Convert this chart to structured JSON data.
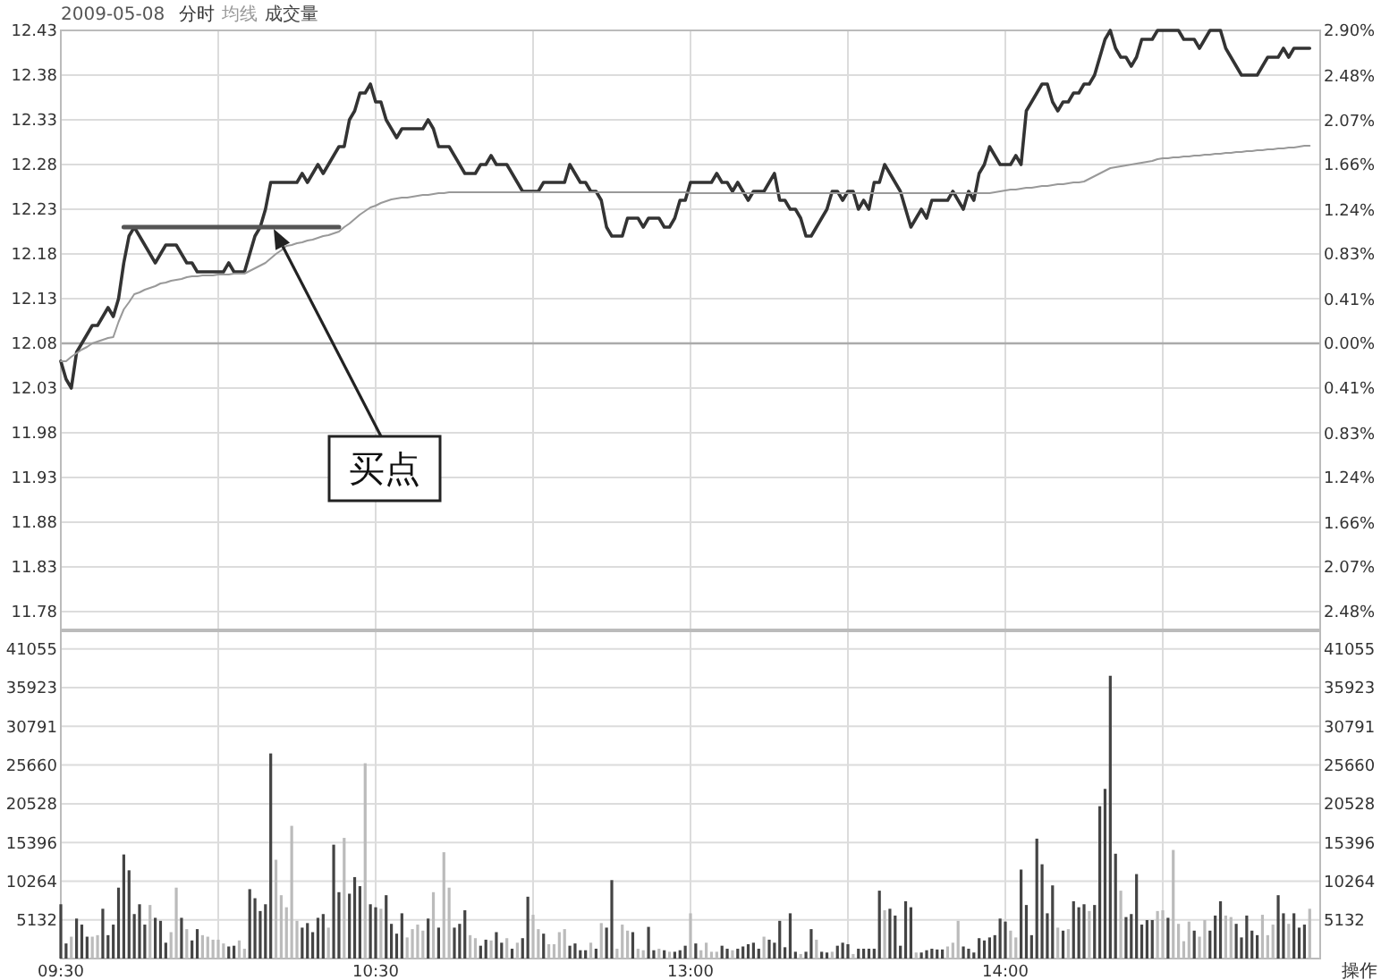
{
  "chart_data": [
    {
      "type": "line",
      "title": "2009-05-08",
      "legend": "top left",
      "grid": true,
      "tick_labels": "y",
      "categories": [
        null,
        null,
        null,
        null,
        null,
        null,
        null,
        null,
        null,
        null,
        null,
        null,
        null,
        null,
        null,
        null,
        null,
        null,
        null,
        null,
        null,
        null,
        null,
        null,
        null,
        null,
        null,
        null,
        null,
        null,
        null,
        null,
        null,
        null,
        null,
        null,
        null,
        null,
        null,
        null,
        null,
        null,
        null,
        null,
        null,
        null,
        null,
        null,
        null,
        null,
        null,
        null,
        null,
        null,
        null,
        null,
        null,
        null,
        null,
        null,
        null,
        null,
        null,
        null,
        null,
        null,
        null,
        null,
        null,
        null,
        null,
        null,
        null,
        null,
        null,
        null,
        null,
        null,
        null,
        null,
        null,
        null,
        null,
        null,
        null,
        null,
        null,
        null,
        null,
        null,
        null,
        null,
        null,
        null,
        null,
        null,
        null,
        null,
        null,
        null,
        null,
        null,
        null,
        null,
        null,
        null,
        null,
        null,
        null,
        null,
        null,
        null,
        null,
        null,
        null,
        null,
        null,
        null,
        null,
        null,
        null,
        null,
        null,
        null,
        null,
        null,
        null,
        null,
        null,
        null,
        null,
        null,
        null,
        null,
        null,
        null,
        null,
        null,
        null,
        null,
        null,
        null,
        null,
        null,
        null,
        null,
        null,
        null,
        null,
        null,
        null,
        null,
        null,
        null,
        null,
        null,
        null,
        null,
        null,
        null,
        null,
        null,
        null,
        null,
        null,
        null,
        null,
        null,
        null,
        null,
        null,
        null,
        null,
        null,
        null,
        null,
        null,
        null,
        null,
        null,
        null,
        null,
        null,
        null,
        null,
        null,
        null,
        null,
        null,
        null,
        null,
        null,
        null,
        null,
        null,
        null,
        null,
        null,
        null,
        null,
        null,
        null,
        null,
        null,
        null,
        null,
        null,
        null,
        null,
        null,
        null,
        null,
        null,
        null,
        null,
        null,
        null,
        null,
        null,
        null,
        null,
        null,
        null,
        null,
        null,
        null,
        null,
        null,
        null,
        null,
        null,
        null,
        null,
        null,
        null,
        null,
        null,
        null,
        null,
        null,
        null
      ],
      "ylim": [
        11.76,
        12.43
      ],
      "yticks": [
        12.43,
        12.38,
        12.33,
        12.28,
        12.23,
        12.18,
        12.13,
        12.08,
        12.03,
        11.98,
        11.93,
        11.88,
        11.83,
        11.78
      ],
      "y2lim": [
        -2.65,
        2.9
      ],
      "y2ticks": [
        {
          "value": 2.9,
          "label": "2.90%"
        },
        {
          "value": 2.48,
          "label": "2.48%"
        },
        {
          "value": 2.07,
          "label": "2.07%"
        },
        {
          "value": 1.66,
          "label": "1.66%"
        },
        {
          "value": 1.24,
          "label": "1.24%"
        },
        {
          "value": 0.83,
          "label": "0.83%"
        },
        {
          "value": 0.41,
          "label": "0.41%"
        },
        {
          "value": 0,
          "label": "0.00%"
        },
        {
          "value": -0.41,
          "label": "0.41%"
        },
        {
          "value": -0.83,
          "label": "0.83%"
        },
        {
          "value": -1.24,
          "label": "1.24%"
        },
        {
          "value": -1.66,
          "label": "1.66%"
        },
        {
          "value": -2.07,
          "label": "2.07%"
        },
        {
          "value": -2.48,
          "label": "2.48%"
        }
      ],
      "ref_lines": [
        {
          "axis": "y",
          "value": 12.08,
          "color": "#aaaaaa"
        }
      ],
      "annotations": [
        "买点"
      ],
      "series": [
        {
          "name": "分时",
          "color": "#333333",
          "values": [
            12.06,
            12.04,
            12.03,
            12.07,
            12.08,
            12.09,
            12.1,
            12.1,
            12.11,
            12.12,
            12.11,
            12.13,
            12.17,
            12.2,
            12.21,
            12.2,
            12.19,
            12.18,
            12.17,
            12.18,
            12.19,
            12.19,
            12.19,
            12.18,
            12.17,
            12.17,
            12.16,
            12.16,
            12.16,
            12.16,
            12.16,
            12.16,
            12.17,
            12.16,
            12.16,
            12.16,
            12.18,
            12.2,
            12.21,
            12.23,
            12.26,
            12.26,
            12.26,
            12.26,
            12.26,
            12.26,
            12.27,
            12.26,
            12.27,
            12.28,
            12.27,
            12.28,
            12.29,
            12.3,
            12.3,
            12.33,
            12.34,
            12.36,
            12.36,
            12.37,
            12.35,
            12.35,
            12.33,
            12.32,
            12.31,
            12.32,
            12.32,
            12.32,
            12.32,
            12.32,
            12.33,
            12.32,
            12.3,
            12.3,
            12.3,
            12.29,
            12.28,
            12.27,
            12.27,
            12.27,
            12.28,
            12.28,
            12.29,
            12.28,
            12.28,
            12.28,
            12.27,
            12.26,
            12.25,
            12.25,
            12.25,
            12.25,
            12.26,
            12.26,
            12.26,
            12.26,
            12.26,
            12.28,
            12.27,
            12.26,
            12.26,
            12.25,
            12.25,
            12.24,
            12.21,
            12.2,
            12.2,
            12.2,
            12.22,
            12.22,
            12.22,
            12.21,
            12.22,
            12.22,
            12.22,
            12.21,
            12.21,
            12.22,
            12.24,
            12.24,
            12.26,
            12.26,
            12.26,
            12.26,
            12.26,
            12.27,
            12.26,
            12.26,
            12.25,
            12.26,
            12.25,
            12.24,
            12.25,
            12.25,
            12.25,
            12.26,
            12.27,
            12.24,
            12.24,
            12.23,
            12.23,
            12.22,
            12.2,
            12.2,
            12.21,
            12.22,
            12.23,
            12.25,
            12.25,
            12.24,
            12.25,
            12.25,
            12.23,
            12.24,
            12.23,
            12.26,
            12.26,
            12.28,
            12.27,
            12.26,
            12.25,
            12.23,
            12.21,
            12.22,
            12.23,
            12.22,
            12.24,
            12.24,
            12.24,
            12.24,
            12.25,
            12.24,
            12.23,
            12.25,
            12.24,
            12.27,
            12.28,
            12.3,
            12.29,
            12.28,
            12.28,
            12.28,
            12.29,
            12.28,
            12.34,
            12.35,
            12.36,
            12.37,
            12.37,
            12.35,
            12.34,
            12.35,
            12.35,
            12.36,
            12.36,
            12.37,
            12.37,
            12.38,
            12.4,
            12.42,
            12.43,
            12.41,
            12.4,
            12.4,
            12.39,
            12.4,
            12.42,
            12.42,
            12.42,
            12.43,
            12.43,
            12.43,
            12.43,
            12.43,
            12.42,
            12.42,
            12.42,
            12.41,
            12.42,
            12.43,
            12.43,
            12.43,
            12.41,
            12.4,
            12.39,
            12.38,
            12.38,
            12.38,
            12.38,
            12.39,
            12.4,
            12.4,
            12.4,
            12.41,
            12.4,
            12.41,
            12.41,
            12.41,
            12.41,
            null,
            null
          ]
        },
        {
          "name": "均线",
          "color": "#999999",
          "values": [
            12.06,
            12.06,
            12.065,
            12.069,
            12.073,
            12.076,
            12.08,
            12.082,
            12.084,
            12.086,
            12.087,
            12.104,
            12.118,
            12.126,
            12.135,
            12.137,
            12.14,
            12.142,
            12.144,
            12.147,
            12.148,
            12.15,
            12.151,
            12.152,
            12.154,
            12.155,
            12.155,
            12.156,
            12.156,
            12.156,
            12.157,
            12.157,
            12.157,
            12.158,
            12.158,
            12.158,
            12.161,
            12.164,
            12.167,
            12.17,
            12.175,
            12.18,
            12.184,
            12.189,
            12.19,
            12.192,
            12.193,
            12.195,
            12.196,
            12.198,
            12.2,
            12.201,
            12.203,
            12.205,
            12.21,
            12.214,
            12.219,
            12.224,
            12.228,
            12.232,
            12.234,
            12.237,
            12.239,
            12.241,
            12.242,
            12.243,
            12.243,
            12.244,
            12.245,
            12.246,
            12.246,
            12.247,
            12.248,
            12.248,
            12.249,
            12.249,
            12.249,
            12.249,
            12.249,
            12.249,
            12.249,
            12.249,
            12.249,
            12.249,
            12.249,
            12.249,
            12.249,
            12.249,
            12.249,
            12.249,
            12.249,
            12.249,
            12.249,
            12.249,
            12.249,
            12.249,
            12.249,
            12.249,
            12.249,
            12.249,
            12.249,
            12.249,
            12.249,
            12.249,
            12.249,
            12.249,
            12.249,
            12.249,
            12.249,
            12.249,
            12.249,
            12.249,
            12.249,
            12.249,
            12.249,
            12.249,
            12.249,
            12.249,
            12.249,
            12.249,
            12.248,
            12.248,
            12.248,
            12.248,
            12.248,
            12.248,
            12.248,
            12.248,
            12.248,
            12.248,
            12.248,
            12.248,
            12.248,
            12.248,
            12.248,
            12.248,
            12.248,
            12.248,
            12.248,
            12.248,
            12.248,
            12.248,
            12.248,
            12.248,
            12.248,
            12.248,
            12.248,
            12.248,
            12.248,
            12.248,
            12.248,
            12.248,
            12.248,
            12.248,
            12.248,
            12.248,
            12.248,
            12.248,
            12.248,
            12.248,
            12.248,
            12.248,
            12.248,
            12.248,
            12.248,
            12.248,
            12.248,
            12.248,
            12.248,
            12.248,
            12.248,
            12.248,
            12.248,
            12.248,
            12.248,
            12.248,
            12.248,
            12.248,
            12.249,
            12.25,
            12.251,
            12.252,
            12.252,
            12.253,
            12.254,
            12.254,
            12.255,
            12.256,
            12.256,
            12.257,
            12.258,
            12.258,
            12.259,
            12.26,
            12.26,
            12.261,
            12.264,
            12.267,
            12.27,
            12.273,
            12.276,
            12.277,
            12.278,
            12.279,
            12.28,
            12.281,
            12.282,
            12.283,
            12.284,
            12.286,
            12.287,
            12.287,
            12.288,
            12.288,
            12.289,
            12.289,
            12.29,
            12.29,
            12.291,
            12.291,
            12.292,
            12.292,
            12.293,
            12.293,
            12.294,
            12.294,
            12.295,
            12.295,
            12.296,
            12.296,
            12.297,
            12.297,
            12.298,
            12.298,
            12.299,
            12.299,
            12.3,
            12.301,
            12.301,
            null,
            null
          ]
        },
        {
          "color": "#555555",
          "values": [
            null,
            null,
            null,
            null,
            null,
            null,
            null,
            null,
            null,
            null,
            null,
            null,
            12.21,
            12.21,
            12.21,
            12.21,
            12.21,
            12.21,
            12.21,
            12.21,
            12.21,
            12.21,
            12.21,
            12.21,
            12.21,
            12.21,
            12.21,
            12.21,
            12.21,
            12.21,
            12.21,
            12.21,
            12.21,
            12.21,
            12.21,
            12.21,
            12.21,
            12.21,
            12.21,
            12.21,
            12.21,
            12.21,
            12.21,
            12.21,
            12.21,
            12.21,
            12.21,
            12.21,
            12.21,
            12.21,
            12.21,
            12.21,
            12.21,
            12.21,
            null,
            null,
            null,
            null,
            null,
            null,
            null,
            null,
            null,
            null,
            null,
            null,
            null,
            null,
            null,
            null,
            null,
            null,
            null,
            null,
            null,
            null,
            null,
            null,
            null,
            null,
            null,
            null,
            null,
            null,
            null,
            null,
            null,
            null,
            null,
            null,
            null,
            null,
            null,
            null,
            null,
            null,
            null,
            null,
            null,
            null,
            null,
            null,
            null,
            null,
            null,
            null,
            null,
            null,
            null,
            null,
            null,
            null,
            null,
            null,
            null,
            null,
            null,
            null,
            null,
            null,
            null,
            null,
            null,
            null,
            null,
            null,
            null,
            null,
            null,
            null,
            null,
            null,
            null,
            null,
            null,
            null,
            null,
            null,
            null,
            null,
            null,
            null,
            null,
            null,
            null,
            null,
            null,
            null,
            null,
            null,
            null,
            null,
            null,
            null,
            null,
            null,
            null,
            null,
            null,
            null,
            null,
            null,
            null,
            null,
            null,
            null,
            null,
            null,
            null,
            null,
            null,
            null,
            null,
            null,
            null,
            null,
            null,
            null,
            null,
            null,
            null,
            null,
            null,
            null,
            null,
            null,
            null,
            null,
            null,
            null,
            null,
            null,
            null,
            null,
            null,
            null,
            null,
            null,
            null,
            null,
            null,
            null,
            null,
            null,
            null,
            null,
            null,
            null,
            null,
            null,
            null,
            null,
            null,
            null,
            null,
            null,
            null,
            null,
            null,
            null,
            null,
            null,
            null,
            null,
            null,
            null,
            null,
            null,
            null,
            null,
            null,
            null,
            null,
            null,
            null,
            null,
            null,
            null,
            null,
            null,
            null
          ]
        }
      ]
    },
    {
      "type": "bar",
      "legend": "top left",
      "grid": true,
      "categories": [
        "09:30",
        null,
        null,
        null,
        null,
        null,
        null,
        null,
        null,
        null,
        null,
        null,
        null,
        null,
        null,
        null,
        null,
        null,
        null,
        null,
        null,
        null,
        null,
        null,
        null,
        null,
        null,
        null,
        null,
        null,
        null,
        null,
        null,
        null,
        null,
        null,
        null,
        null,
        null,
        null,
        null,
        null,
        null,
        null,
        null,
        null,
        null,
        null,
        null,
        null,
        null,
        null,
        null,
        null,
        null,
        null,
        null,
        null,
        null,
        null,
        "10:30",
        null,
        null,
        null,
        null,
        null,
        null,
        null,
        null,
        null,
        null,
        null,
        null,
        null,
        null,
        null,
        null,
        null,
        null,
        null,
        null,
        null,
        null,
        null,
        null,
        null,
        null,
        null,
        null,
        null,
        null,
        null,
        null,
        null,
        null,
        null,
        null,
        null,
        null,
        null,
        null,
        null,
        null,
        null,
        null,
        null,
        null,
        null,
        null,
        null,
        null,
        null,
        null,
        null,
        null,
        null,
        null,
        null,
        null,
        null,
        "13:00",
        null,
        null,
        null,
        null,
        null,
        null,
        null,
        null,
        null,
        null,
        null,
        null,
        null,
        null,
        null,
        null,
        null,
        null,
        null,
        null,
        null,
        null,
        null,
        null,
        null,
        null,
        null,
        null,
        null,
        null,
        null,
        null,
        null,
        null,
        null,
        null,
        null,
        null,
        null,
        null,
        null,
        null,
        null,
        null,
        null,
        null,
        null,
        null,
        null,
        null,
        null,
        null,
        null,
        null,
        null,
        null,
        null,
        null,
        null,
        "14:00",
        null,
        null,
        null,
        null,
        null,
        null,
        null,
        null,
        null,
        null,
        null,
        null,
        null,
        null,
        null,
        null,
        null,
        null,
        null,
        null,
        null,
        null,
        null,
        null,
        null,
        null,
        null,
        null,
        null,
        null,
        null,
        null,
        null,
        null,
        null,
        null,
        null,
        null,
        null,
        null,
        null,
        null,
        null,
        null,
        null,
        null,
        null,
        null,
        null,
        null,
        null,
        null,
        null,
        null,
        null,
        null,
        null,
        null,
        null,
        null
      ],
      "ylim": [
        0,
        43400
      ],
      "yticks": [
        41055,
        35923,
        30791,
        25660,
        20528,
        15396,
        10264,
        5132
      ],
      "y2lim": [
        0,
        43400
      ],
      "y2ticks": [
        41055,
        35923,
        30791,
        25660,
        20528,
        15396,
        10264,
        5132
      ],
      "annotations": [
        "操作"
      ],
      "series": [
        {
          "name": "成交量",
          "color": "#444444",
          "values": [
            7200,
            2000,
            2900,
            5300,
            4500,
            2900,
            2900,
            3100,
            6600,
            3100,
            4500,
            9400,
            13800,
            11700,
            5900,
            7200,
            4500,
            7100,
            5400,
            5000,
            2100,
            3500,
            9400,
            5400,
            3900,
            2400,
            3900,
            3100,
            2900,
            2500,
            2500,
            2000,
            1600,
            1700,
            2400,
            1300,
            9200,
            8000,
            6300,
            7200,
            27200,
            13100,
            8400,
            6800,
            17600,
            5000,
            4100,
            4700,
            3500,
            5400,
            5900,
            4100,
            15100,
            8800,
            16000,
            8600,
            10800,
            9600,
            25900,
            7200,
            6800,
            6600,
            8400,
            4600,
            3300,
            6000,
            2800,
            3900,
            4500,
            3700,
            5300,
            8800,
            4100,
            14100,
            9400,
            4100,
            4600,
            6400,
            3100,
            2700,
            1700,
            2500,
            2400,
            3500,
            2100,
            2700,
            1300,
            2100,
            2700,
            8200,
            5800,
            3900,
            3300,
            1900,
            1900,
            3500,
            3900,
            1700,
            2000,
            1100,
            1100,
            2100,
            1300,
            4700,
            4100,
            10400,
            1300,
            4500,
            3700,
            3500,
            1300,
            1100,
            4200,
            1100,
            1300,
            1100,
            900,
            900,
            1100,
            1700,
            6000,
            2000,
            1100,
            2100,
            900,
            900,
            1700,
            1300,
            1100,
            1300,
            1600,
            1900,
            2100,
            1300,
            2900,
            2500,
            2100,
            5000,
            1500,
            6000,
            900,
            600,
            900,
            3900,
            2500,
            900,
            800,
            900,
            1700,
            2100,
            1900,
            600,
            1300,
            1300,
            1300,
            1300,
            9000,
            6400,
            6600,
            5700,
            1700,
            7600,
            6800,
            800,
            800,
            1100,
            1300,
            1200,
            1200,
            1600,
            2100,
            5000,
            1600,
            1300,
            800,
            2700,
            2400,
            2800,
            3100,
            5300,
            4900,
            3700,
            2800,
            11800,
            7100,
            3100,
            15900,
            12500,
            6000,
            9700,
            4100,
            3700,
            3900,
            7600,
            6800,
            7200,
            6300,
            7100,
            20200,
            22500,
            37500,
            13900,
            9000,
            5500,
            5900,
            11200,
            4500,
            5100,
            5100,
            6300,
            6400,
            5400,
            14400,
            4600,
            2300,
            4900,
            3700,
            2900,
            5100,
            3700,
            5700,
            7600,
            5700,
            5500,
            4600,
            2800,
            5700,
            3700,
            3100,
            5800,
            3100,
            4500,
            8400,
            6000,
            4600,
            6000,
            4100,
            4500,
            6600,
            null,
            null
          ],
          "colors": [
            "#444444",
            "#444444",
            "#bbbbbb",
            "#444444",
            "#444444",
            "#444444",
            "#bbbbbb",
            "#bbbbbb",
            "#444444",
            "#444444",
            "#444444",
            "#444444",
            "#444444",
            "#444444",
            "#444444",
            "#444444",
            "#444444",
            "#bbbbbb",
            "#444444",
            "#444444",
            "#444444",
            "#bbbbbb",
            "#bbbbbb",
            "#444444",
            "#bbbbbb",
            "#444444",
            "#444444",
            "#bbbbbb",
            "#bbbbbb",
            "#bbbbbb",
            "#bbbbbb",
            "#bbbbbb",
            "#444444",
            "#444444",
            "#bbbbbb",
            "#bbbbbb",
            "#444444",
            "#444444",
            "#444444",
            "#444444",
            "#444444",
            "#bbbbbb",
            "#bbbbbb",
            "#bbbbbb",
            "#bbbbbb",
            "#bbbbbb",
            "#444444",
            "#444444",
            "#444444",
            "#444444",
            "#444444",
            "#bbbbbb",
            "#444444",
            "#444444",
            "#bbbbbb",
            "#444444",
            "#444444",
            "#444444",
            "#bbbbbb",
            "#444444",
            "#444444",
            "#bbbbbb",
            "#444444",
            "#444444",
            "#444444",
            "#444444",
            "#bbbbbb",
            "#bbbbbb",
            "#bbbbbb",
            "#bbbbbb",
            "#444444",
            "#bbbbbb",
            "#444444",
            "#bbbbbb",
            "#bbbbbb",
            "#444444",
            "#444444",
            "#444444",
            "#bbbbbb",
            "#bbbbbb",
            "#444444",
            "#444444",
            "#bbbbbb",
            "#444444",
            "#444444",
            "#bbbbbb",
            "#444444",
            "#bbbbbb",
            "#444444",
            "#444444",
            "#bbbbbb",
            "#bbbbbb",
            "#444444",
            "#bbbbbb",
            "#bbbbbb",
            "#bbbbbb",
            "#bbbbbb",
            "#444444",
            "#444444",
            "#444444",
            "#444444",
            "#bbbbbb",
            "#444444",
            "#bbbbbb",
            "#444444",
            "#444444",
            "#bbbbbb",
            "#bbbbbb",
            "#bbbbbb",
            "#444444",
            "#bbbbbb",
            "#bbbbbb",
            "#444444",
            "#444444",
            "#bbbbbb",
            "#444444",
            "#bbbbbb",
            "#444444",
            "#444444",
            "#444444",
            "#bbbbbb",
            "#444444",
            "#bbbbbb",
            "#bbbbbb",
            "#bbbbbb",
            "#bbbbbb",
            "#444444",
            "#444444",
            "#bbbbbb",
            "#444444",
            "#444444",
            "#444444",
            "#444444",
            "#444444",
            "#bbbbbb",
            "#444444",
            "#444444",
            "#444444",
            "#444444",
            "#444444",
            "#444444",
            "#bbbbbb",
            "#444444",
            "#444444",
            "#bbbbbb",
            "#444444",
            "#444444",
            "#bbbbbb",
            "#444444",
            "#444444",
            "#444444",
            "#bbbbbb",
            "#444444",
            "#444444",
            "#444444",
            "#444444",
            "#444444",
            "#bbbbbb",
            "#444444",
            "#444444",
            "#444444",
            "#444444",
            "#444444",
            "#bbbbbb",
            "#444444",
            "#444444",
            "#444444",
            "#444444",
            "#444444",
            "#bbbbbb",
            "#bbbbbb",
            "#bbbbbb",
            "#444444",
            "#444444",
            "#444444",
            "#444444",
            "#444444",
            "#444444",
            "#444444",
            "#444444",
            "#444444",
            "#bbbbbb",
            "#bbbbbb",
            "#444444",
            "#444444",
            "#444444",
            "#444444",
            "#444444",
            "#444444",
            "#444444",
            "#bbbbbb",
            "#444444",
            "#bbbbbb",
            "#444444",
            "#444444",
            "#444444",
            "#bbbbbb",
            "#444444",
            "#444444",
            "#444444",
            "#444444",
            "#444444",
            "#bbbbbb",
            "#444444",
            "#444444",
            "#444444",
            "#444444",
            "#444444",
            "#444444",
            "#bbbbbb",
            "#bbbbbb",
            "#444444",
            "#bbbbbb",
            "#bbbbbb",
            "#bbbbbb",
            "#bbbbbb",
            "#444444",
            "#bbbbbb",
            "#bbbbbb",
            "#444444",
            "#444444",
            "#444444",
            "#bbbbbb",
            "#bbbbbb",
            "#444444",
            "#444444",
            "#444444",
            "#444444",
            "#444444",
            "#bbbbbb",
            "#bbbbbb",
            "#bbbbbb",
            "#444444",
            "#444444",
            "#bbbbbb",
            "#444444",
            "#444444",
            "#444444",
            "#bbbbbb",
            null,
            null
          ]
        }
      ]
    }
  ]
}
